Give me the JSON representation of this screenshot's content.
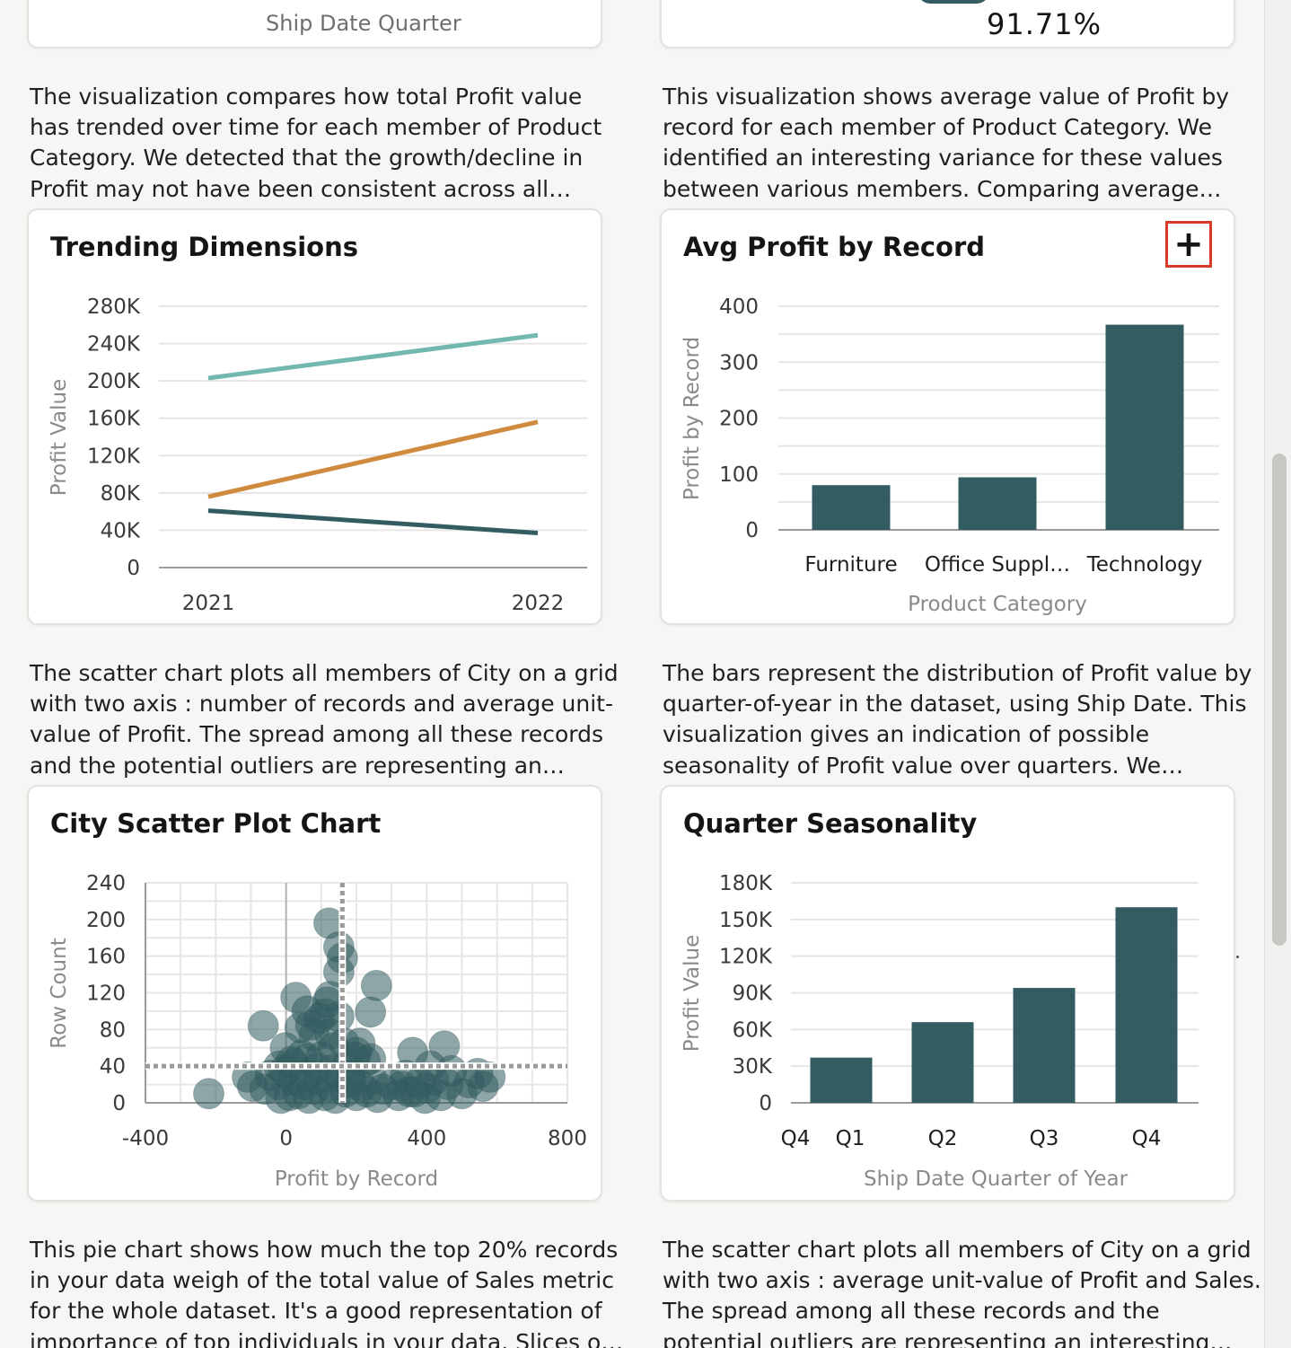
{
  "top_cards": {
    "left_fragment": {
      "axis_label": "Ship Date Quarter"
    },
    "right_fragment": {
      "kpi_value": "91.71%"
    }
  },
  "descriptions": {
    "trending": [
      "The visualization compares how total Profit value",
      "has trended over time for each member of Product",
      "Category. We detected that the growth/decline in",
      "Profit may not have been consistent across all…"
    ],
    "avg_profit": [
      "This visualization shows average value of Profit by",
      "record for each member of Product Category. We",
      "identified an interesting variance for these values",
      "between various members. Comparing average…"
    ],
    "city_scatter": [
      "The scatter chart plots all members of City on a grid",
      "with two axis : number of records and average unit-",
      "value of Profit. The spread among all these records",
      "and the potential outliers are representing an…"
    ],
    "quarter": [
      "The bars represent the distribution of Profit value by",
      "quarter-of-year in the dataset, using Ship Date. This",
      "visualization gives an indication of possible",
      "seasonality of Profit value over quarters. We…"
    ],
    "pie": [
      "This pie chart shows how much the top 20% records",
      "in your data weigh of the total value of Sales metric",
      "for the whole dataset. It's a good representation of",
      "importance of top individuals in your data. Slices o…"
    ],
    "sales_scatter": [
      "The scatter chart plots all members of City on a grid",
      "with two axis : average unit-value of Profit and Sales.",
      "The spread among all these records and the",
      "potential outliers are representing an interesting…"
    ]
  },
  "actions": {
    "add_icon": "plus-icon",
    "add_symbol": "+"
  },
  "colors": {
    "teal_dark": "#335c61",
    "teal_light": "#72b7b0",
    "orange": "#cf8a3e",
    "highlight_border": "#d83a2a"
  },
  "chart_data": [
    {
      "id": "trending",
      "type": "line",
      "title": "Trending Dimensions",
      "xlabel": "",
      "ylabel": "Profit Value",
      "x": [
        "2021",
        "2022"
      ],
      "yticks": [
        "0",
        "40K",
        "80K",
        "120K",
        "160K",
        "200K",
        "240K",
        "280K"
      ],
      "ylim": [
        0,
        280000
      ],
      "series": [
        {
          "values": [
            203000,
            249000
          ],
          "color": "#72b7b0"
        },
        {
          "values": [
            76000,
            156000
          ],
          "color": "#cf8a3e"
        },
        {
          "values": [
            61000,
            37000
          ],
          "color": "#335c61"
        }
      ]
    },
    {
      "id": "avg_profit",
      "type": "bar",
      "title": "Avg Profit by Record",
      "xlabel": "Product Category",
      "ylabel": "Profit by Record",
      "categories": [
        "Furniture",
        "Office Suppl…",
        "Technology"
      ],
      "values": [
        80,
        94,
        367
      ],
      "yticks": [
        "0",
        "100",
        "200",
        "300",
        "400"
      ],
      "ylim": [
        0,
        400
      ]
    },
    {
      "id": "city_scatter",
      "type": "scatter",
      "title": "City Scatter Plot Chart",
      "xlabel": "Profit by Record",
      "ylabel": "Row Count",
      "xticks": [
        "-400",
        "0",
        "400",
        "800"
      ],
      "yticks": [
        "0",
        "40",
        "80",
        "120",
        "160",
        "200",
        "240"
      ],
      "xlim": [
        -400,
        800
      ],
      "ylim": [
        0,
        240
      ],
      "ref_x": 160,
      "ref_y": 40,
      "points": [
        [
          122,
          196
        ],
        [
          160,
          158
        ],
        [
          150,
          143
        ],
        [
          257,
          128
        ],
        [
          28,
          115
        ],
        [
          125,
          116
        ],
        [
          240,
          99
        ],
        [
          -65,
          84
        ],
        [
          40,
          82
        ],
        [
          70,
          85
        ],
        [
          95,
          92
        ],
        [
          110,
          97
        ],
        [
          150,
          94
        ],
        [
          80,
          73
        ],
        [
          125,
          75
        ],
        [
          165,
          65
        ],
        [
          200,
          55
        ],
        [
          225,
          45
        ],
        [
          -20,
          40
        ],
        [
          -2,
          60
        ],
        [
          45,
          52
        ],
        [
          60,
          48
        ],
        [
          90,
          38
        ],
        [
          130,
          36
        ],
        [
          175,
          42
        ],
        [
          195,
          50
        ],
        [
          240,
          48
        ],
        [
          360,
          55
        ],
        [
          450,
          62
        ],
        [
          410,
          40
        ],
        [
          340,
          30
        ],
        [
          330,
          18
        ],
        [
          350,
          12
        ],
        [
          400,
          16
        ],
        [
          420,
          25
        ],
        [
          460,
          20
        ],
        [
          500,
          10
        ],
        [
          520,
          22
        ],
        [
          545,
          32
        ],
        [
          560,
          18
        ],
        [
          580,
          28
        ],
        [
          -220,
          10
        ],
        [
          -110,
          28
        ],
        [
          -95,
          18
        ],
        [
          -60,
          15
        ],
        [
          -45,
          30
        ],
        [
          -20,
          20
        ],
        [
          -15,
          5
        ],
        [
          10,
          8
        ],
        [
          20,
          25
        ],
        [
          35,
          10
        ],
        [
          50,
          20
        ],
        [
          65,
          5
        ],
        [
          80,
          15
        ],
        [
          95,
          25
        ],
        [
          110,
          8
        ],
        [
          125,
          18
        ],
        [
          140,
          5
        ],
        [
          155,
          28
        ],
        [
          170,
          12
        ],
        [
          185,
          22
        ],
        [
          200,
          8
        ],
        [
          215,
          18
        ],
        [
          230,
          12
        ],
        [
          245,
          25
        ],
        [
          260,
          6
        ],
        [
          275,
          15
        ],
        [
          300,
          20
        ],
        [
          320,
          8
        ],
        [
          365,
          12
        ],
        [
          380,
          22
        ],
        [
          395,
          5
        ],
        [
          -5,
          35
        ],
        [
          20,
          42
        ],
        [
          55,
          30
        ],
        [
          100,
          50
        ],
        [
          135,
          60
        ],
        [
          180,
          30
        ],
        [
          210,
          65
        ],
        [
          150,
          170
        ],
        [
          118,
          110
        ],
        [
          60,
          100
        ],
        [
          15,
          45
        ],
        [
          440,
          8
        ],
        [
          470,
          35
        ]
      ]
    },
    {
      "id": "quarter",
      "type": "bar",
      "title": "Quarter Seasonality",
      "xlabel": "Ship Date Quarter of Year",
      "ylabel": "Profit Value",
      "categories": [
        "Q1",
        "Q2",
        "Q3",
        "Q4"
      ],
      "values": [
        37000,
        66000,
        94000,
        160000
      ],
      "yticks": [
        "0",
        "30K",
        "60K",
        "90K",
        "120K",
        "150K",
        "180K"
      ],
      "extra_label": "Q4",
      "ylim": [
        0,
        180000
      ]
    }
  ]
}
